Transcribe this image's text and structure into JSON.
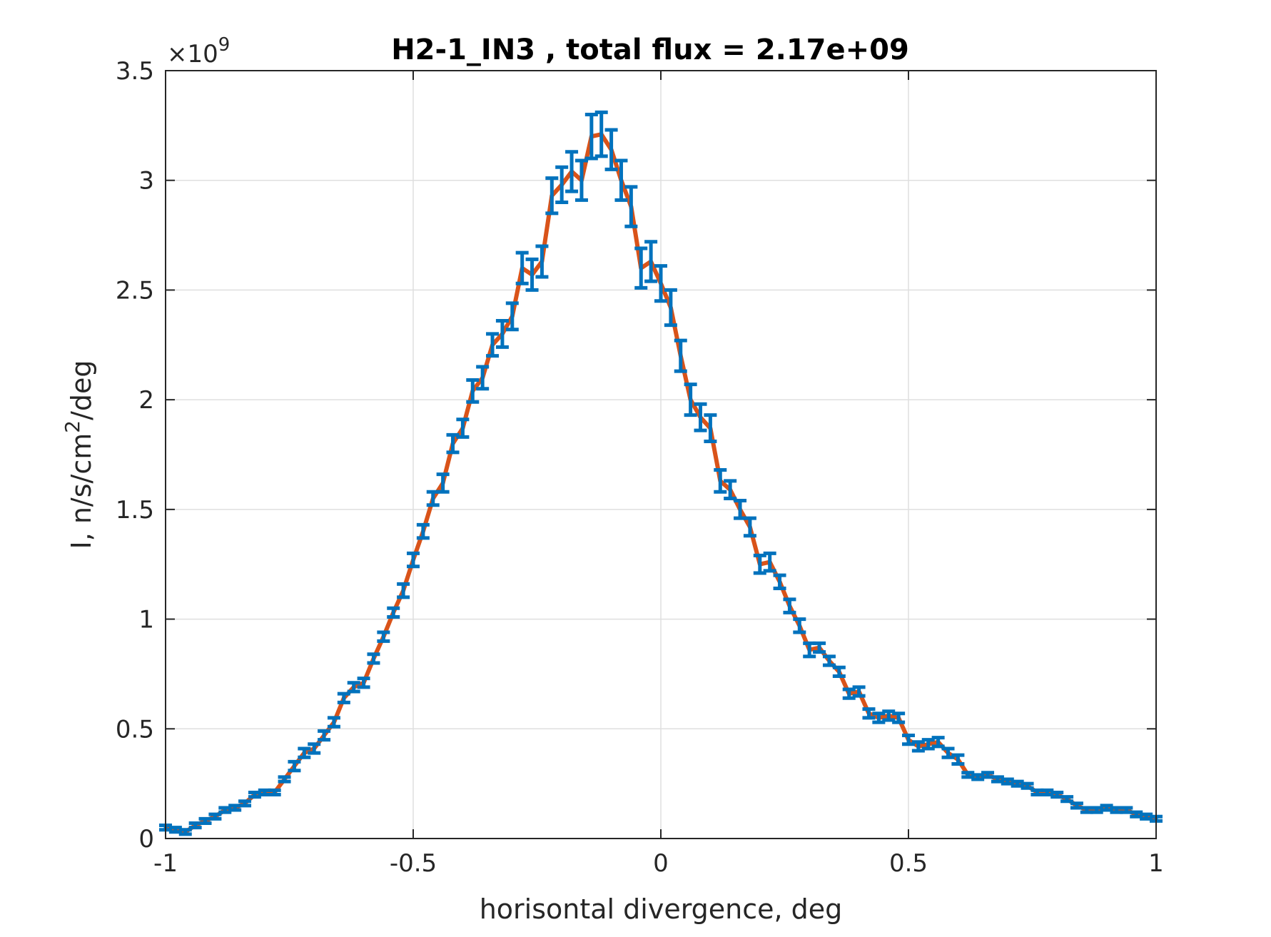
{
  "chart_data": {
    "type": "line",
    "title": "H2-1_IN3 , total flux =  2.17e+09",
    "xlabel": "horisontal divergence, deg",
    "ylabel_main": "I, n/s/cm",
    "ylabel_sup": "2",
    "ylabel_tail": "/deg",
    "y_exponent_base": "×10",
    "y_exponent_power": "9",
    "xlim": [
      -1,
      1
    ],
    "ylim": [
      0,
      3.5
    ],
    "xticks": [
      -1,
      -0.5,
      0,
      0.5,
      1
    ],
    "xtick_labels": [
      "-1",
      "-0.5",
      "0",
      "0.5",
      "1"
    ],
    "yticks": [
      0,
      0.5,
      1,
      1.5,
      2,
      2.5,
      3,
      3.5
    ],
    "ytick_labels": [
      "0",
      "0.5",
      "1",
      "1.5",
      "2",
      "2.5",
      "3",
      "3.5"
    ],
    "grid": true,
    "colors": {
      "line": "#d95319",
      "errorbar": "#0072bd",
      "axis": "#262626",
      "grid": "#dfdfdf"
    },
    "x": [
      -1.0,
      -0.98,
      -0.96,
      -0.94,
      -0.92,
      -0.9,
      -0.88,
      -0.86,
      -0.84,
      -0.82,
      -0.8,
      -0.78,
      -0.76,
      -0.74,
      -0.72,
      -0.7,
      -0.68,
      -0.66,
      -0.64,
      -0.62,
      -0.6,
      -0.58,
      -0.56,
      -0.54,
      -0.52,
      -0.5,
      -0.48,
      -0.46,
      -0.44,
      -0.42,
      -0.4,
      -0.38,
      -0.36,
      -0.34,
      -0.32,
      -0.3,
      -0.28,
      -0.26,
      -0.24,
      -0.22,
      -0.2,
      -0.18,
      -0.16,
      -0.14,
      -0.12,
      -0.1,
      -0.08,
      -0.06,
      -0.04,
      -0.02,
      0.0,
      0.02,
      0.04,
      0.06,
      0.08,
      0.1,
      0.12,
      0.14,
      0.16,
      0.18,
      0.2,
      0.22,
      0.24,
      0.26,
      0.28,
      0.3,
      0.32,
      0.34,
      0.36,
      0.38,
      0.4,
      0.42,
      0.44,
      0.46,
      0.48,
      0.5,
      0.52,
      0.54,
      0.56,
      0.58,
      0.6,
      0.62,
      0.64,
      0.66,
      0.68,
      0.7,
      0.72,
      0.74,
      0.76,
      0.78,
      0.8,
      0.82,
      0.84,
      0.86,
      0.88,
      0.9,
      0.92,
      0.94,
      0.96,
      0.98,
      1.0
    ],
    "y": [
      0.05,
      0.04,
      0.03,
      0.06,
      0.08,
      0.1,
      0.13,
      0.14,
      0.16,
      0.2,
      0.21,
      0.21,
      0.27,
      0.33,
      0.39,
      0.41,
      0.47,
      0.53,
      0.64,
      0.69,
      0.71,
      0.82,
      0.92,
      1.03,
      1.13,
      1.27,
      1.4,
      1.55,
      1.62,
      1.8,
      1.87,
      2.04,
      2.1,
      2.25,
      2.3,
      2.38,
      2.6,
      2.57,
      2.63,
      2.93,
      2.98,
      3.04,
      3.0,
      3.2,
      3.21,
      3.14,
      3.0,
      2.88,
      2.6,
      2.63,
      2.53,
      2.42,
      2.2,
      2.0,
      1.92,
      1.87,
      1.63,
      1.59,
      1.5,
      1.42,
      1.25,
      1.26,
      1.17,
      1.06,
      0.97,
      0.86,
      0.87,
      0.81,
      0.76,
      0.66,
      0.67,
      0.57,
      0.55,
      0.56,
      0.55,
      0.45,
      0.42,
      0.43,
      0.44,
      0.39,
      0.36,
      0.29,
      0.28,
      0.29,
      0.27,
      0.26,
      0.25,
      0.24,
      0.21,
      0.21,
      0.2,
      0.18,
      0.15,
      0.13,
      0.13,
      0.14,
      0.13,
      0.13,
      0.11,
      0.1,
      0.09
    ],
    "err": [
      0.01,
      0.01,
      0.01,
      0.01,
      0.01,
      0.01,
      0.01,
      0.01,
      0.01,
      0.01,
      0.01,
      0.01,
      0.01,
      0.02,
      0.02,
      0.02,
      0.02,
      0.02,
      0.02,
      0.02,
      0.02,
      0.02,
      0.02,
      0.02,
      0.03,
      0.03,
      0.03,
      0.03,
      0.04,
      0.04,
      0.04,
      0.05,
      0.05,
      0.05,
      0.06,
      0.06,
      0.07,
      0.07,
      0.07,
      0.08,
      0.08,
      0.09,
      0.09,
      0.1,
      0.1,
      0.09,
      0.09,
      0.09,
      0.09,
      0.09,
      0.08,
      0.08,
      0.07,
      0.07,
      0.06,
      0.06,
      0.05,
      0.04,
      0.04,
      0.04,
      0.04,
      0.04,
      0.03,
      0.03,
      0.03,
      0.03,
      0.02,
      0.02,
      0.02,
      0.02,
      0.02,
      0.02,
      0.02,
      0.02,
      0.02,
      0.02,
      0.02,
      0.02,
      0.02,
      0.02,
      0.02,
      0.01,
      0.01,
      0.01,
      0.01,
      0.01,
      0.01,
      0.01,
      0.01,
      0.01,
      0.01,
      0.01,
      0.01,
      0.01,
      0.01,
      0.01,
      0.01,
      0.01,
      0.01,
      0.01,
      0.01
    ]
  }
}
